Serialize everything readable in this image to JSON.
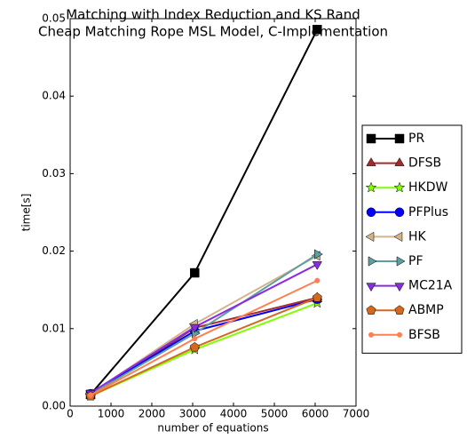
{
  "chart_data": {
    "type": "line",
    "title": "Matching with Index Reduction and KS Rand",
    "subtitle": "Cheap Matching Rope MSL Model, C-Implementation",
    "x_label": "number of equations",
    "y_label": "time[s]",
    "xlim": [
      0,
      7000
    ],
    "xticks": [
      0,
      1000,
      2000,
      3000,
      4000,
      5000,
      6000,
      7000
    ],
    "ylim": [
      0,
      0.05
    ],
    "yticks": [
      {
        "value": 0,
        "label": "0.00"
      },
      {
        "value": 0.01,
        "label": "0.01"
      },
      {
        "value": 0.02,
        "label": "0.02"
      },
      {
        "value": 0.03,
        "label": "0.03"
      },
      {
        "value": 0.04,
        "label": "0.04"
      },
      {
        "value": 0.05,
        "label": "0.05"
      }
    ],
    "grid": false,
    "legend": "right",
    "series": [
      {
        "name": "PR",
        "color": "#000000",
        "marker": "square",
        "x": [
          500,
          3050,
          6050
        ],
        "values": [
          0.0015,
          0.0172,
          0.0486
        ]
      },
      {
        "name": "DFSB",
        "color": "#a52a2a",
        "marker": "triangle-up",
        "x": [
          500,
          3050,
          6050
        ],
        "values": [
          0.0013,
          0.0101,
          0.014
        ]
      },
      {
        "name": "HKDW",
        "color": "#7fff00",
        "marker": "star",
        "x": [
          500,
          3050,
          6050
        ],
        "values": [
          0.0013,
          0.0073,
          0.0133
        ]
      },
      {
        "name": "PFPlus",
        "color": "#0000ff",
        "marker": "circle",
        "x": [
          500,
          3050,
          6050
        ],
        "values": [
          0.0016,
          0.0097,
          0.0138
        ]
      },
      {
        "name": "HK",
        "color": "#d2b48c",
        "marker": "triangle-left",
        "x": [
          500,
          3050,
          6050
        ],
        "values": [
          0.0016,
          0.0106,
          0.0194
        ]
      },
      {
        "name": "PF",
        "color": "#5f9ea0",
        "marker": "triangle-right",
        "x": [
          500,
          3050,
          6050
        ],
        "values": [
          0.0015,
          0.0094,
          0.0196
        ]
      },
      {
        "name": "MC21A",
        "color": "#8a2be2",
        "marker": "triangle-down",
        "x": [
          500,
          3050,
          6050
        ],
        "values": [
          0.0017,
          0.0102,
          0.0183
        ]
      },
      {
        "name": "ABMP",
        "color": "#d2691e",
        "marker": "pentagon",
        "x": [
          500,
          3050,
          6050
        ],
        "values": [
          0.0013,
          0.0076,
          0.014
        ]
      },
      {
        "name": "BFSB",
        "color": "#ff7f50",
        "marker": "dot",
        "x": [
          500,
          3050,
          6050
        ],
        "values": [
          0.0014,
          0.0087,
          0.0162
        ]
      }
    ]
  }
}
